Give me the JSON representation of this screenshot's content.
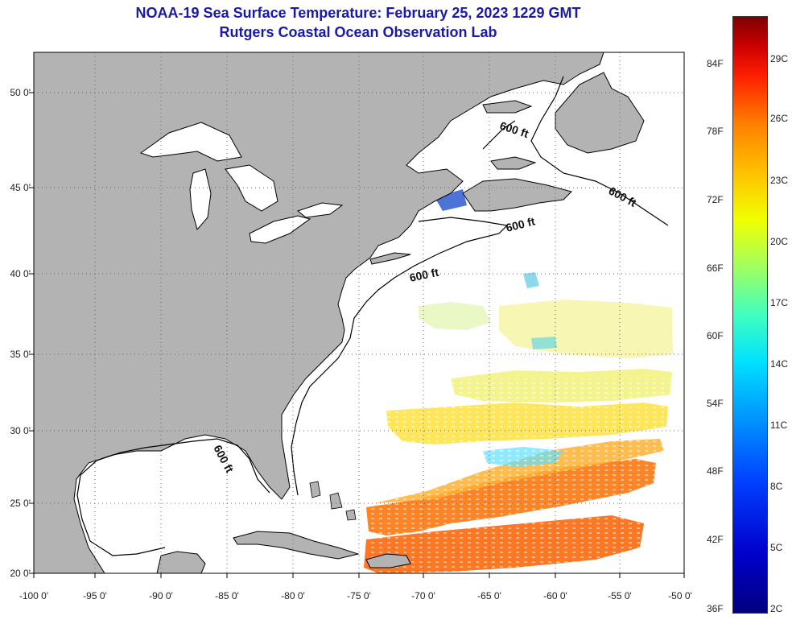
{
  "header": {
    "title_line1": "NOAA-19 Sea Surface Temperature:  February 25, 2023 1229 GMT",
    "title_line2": "Rutgers Coastal Ocean Observation Lab"
  },
  "map": {
    "latitude_labels": [
      "50 0'",
      "45 0'",
      "40 0'",
      "35 0'",
      "30 0'",
      "25 0'",
      "20 0'"
    ],
    "longitude_labels": [
      "-100 0'",
      "-95 0'",
      "-90 0'",
      "-85 0'",
      "-80 0'",
      "-75 0'",
      "-70 0'",
      "-65 0'",
      "-60 0'",
      "-55 0'",
      "-50 0'"
    ],
    "contour_label": "600 ft",
    "land_color": "#b3b3b3",
    "ocean_color": "#ffffff"
  },
  "colorbar": {
    "fahrenheit_labels": [
      "84F",
      "78F",
      "72F",
      "66F",
      "60F",
      "54F",
      "48F",
      "42F",
      "36F"
    ],
    "celsius_labels": [
      "29C",
      "26C",
      "23C",
      "20C",
      "17C",
      "14C",
      "11C",
      "8C",
      "5C",
      "2C"
    ],
    "min_color": "#00007f",
    "max_color": "#7f0000"
  }
}
